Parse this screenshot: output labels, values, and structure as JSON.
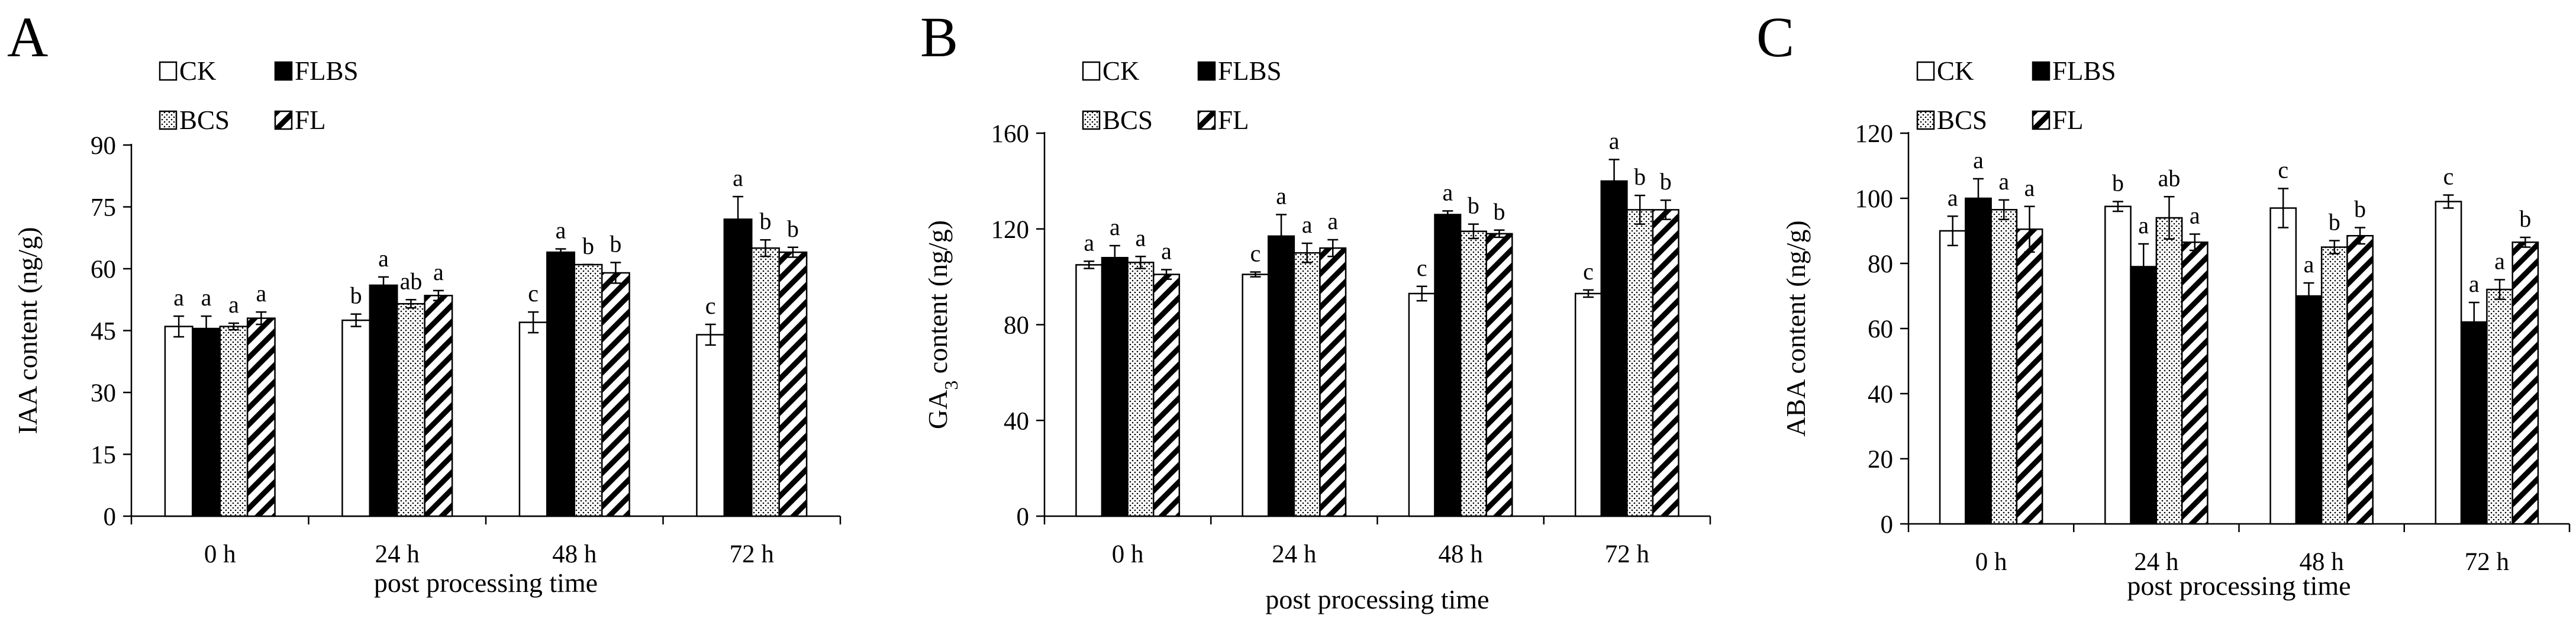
{
  "chart_data": [
    {
      "type": "bar",
      "panel": "A",
      "xlabel": "post processing time",
      "ylabel": "IAA content (ng/g)",
      "ylim": [
        0,
        90
      ],
      "yticks": [
        "0",
        "15",
        "30",
        "45",
        "60",
        "75",
        "90"
      ],
      "categories": [
        "0 h",
        "24 h",
        "48 h",
        "72 h"
      ],
      "series": [
        {
          "name": "CK",
          "pattern": "white",
          "values": [
            46,
            47.5,
            47,
            44
          ],
          "errors": [
            2.5,
            1.5,
            2.5,
            2.5
          ],
          "labels": [
            "a",
            "b",
            "c",
            "c"
          ]
        },
        {
          "name": "FLBS",
          "pattern": "black",
          "values": [
            45.5,
            56,
            64,
            72
          ],
          "errors": [
            3,
            2,
            0.8,
            5.5
          ],
          "labels": [
            "a",
            "a",
            "a",
            "a"
          ]
        },
        {
          "name": "BCS",
          "pattern": "dots",
          "values": [
            46,
            51.5,
            61,
            65
          ],
          "errors": [
            0.8,
            1,
            0,
            2
          ],
          "labels": [
            "a",
            "ab",
            "b",
            "b"
          ]
        },
        {
          "name": "FL",
          "pattern": "hatch",
          "values": [
            48,
            53.5,
            59,
            64
          ],
          "errors": [
            1.5,
            1.2,
            2.5,
            1.2
          ],
          "labels": [
            "a",
            "a",
            "b",
            "b"
          ]
        }
      ]
    },
    {
      "type": "bar",
      "panel": "B",
      "xlabel": "post processing time",
      "ylabel": "GA",
      "ylabel_sub": "3",
      "ylabel_tail": " content (ng/g)",
      "ylim": [
        0,
        160
      ],
      "yticks": [
        "0",
        "40",
        "80",
        "120",
        "160"
      ],
      "categories": [
        "0 h",
        "24 h",
        "48 h",
        "72 h"
      ],
      "series": [
        {
          "name": "CK",
          "pattern": "white",
          "values": [
            105,
            101,
            93,
            93
          ],
          "errors": [
            1.5,
            1,
            3,
            1.5
          ],
          "labels": [
            "a",
            "c",
            "c",
            "c"
          ]
        },
        {
          "name": "FLBS",
          "pattern": "black",
          "values": [
            108,
            117,
            126,
            140
          ],
          "errors": [
            5,
            9,
            1.5,
            9
          ],
          "labels": [
            "a",
            "a",
            "a",
            "a"
          ]
        },
        {
          "name": "BCS",
          "pattern": "dots",
          "values": [
            106,
            110,
            119,
            128
          ],
          "errors": [
            2.5,
            4,
            3,
            6
          ],
          "labels": [
            "a",
            "a",
            "b",
            "b"
          ]
        },
        {
          "name": "FL",
          "pattern": "hatch",
          "values": [
            101,
            112,
            118,
            128
          ],
          "errors": [
            2,
            3.5,
            1.5,
            4
          ],
          "labels": [
            "a",
            "a",
            "b",
            "b"
          ]
        }
      ]
    },
    {
      "type": "bar",
      "panel": "C",
      "xlabel": "post processing time",
      "ylabel": "ABA content (ng/g)",
      "ylim": [
        0,
        120
      ],
      "yticks": [
        "0",
        "20",
        "40",
        "60",
        "80",
        "100",
        "120"
      ],
      "categories": [
        "0 h",
        "24 h",
        "48 h",
        "72 h"
      ],
      "series": [
        {
          "name": "CK",
          "pattern": "white",
          "values": [
            90,
            97.5,
            97,
            99
          ],
          "errors": [
            4.5,
            1.5,
            6,
            2
          ],
          "labels": [
            "a",
            "b",
            "c",
            "c"
          ]
        },
        {
          "name": "FLBS",
          "pattern": "black",
          "values": [
            100,
            79,
            70,
            62
          ],
          "errors": [
            6,
            7,
            4,
            6
          ],
          "labels": [
            "a",
            "a",
            "a",
            "a"
          ]
        },
        {
          "name": "BCS",
          "pattern": "dots",
          "values": [
            96.5,
            94,
            85,
            72
          ],
          "errors": [
            3,
            6.5,
            2,
            3
          ],
          "labels": [
            "a",
            "ab",
            "b",
            "a"
          ]
        },
        {
          "name": "FL",
          "pattern": "hatch",
          "values": [
            90.5,
            86.5,
            88.5,
            86.5
          ],
          "errors": [
            7,
            2.5,
            2.5,
            1.5
          ],
          "labels": [
            "a",
            "a",
            "b",
            "b"
          ]
        }
      ]
    }
  ]
}
